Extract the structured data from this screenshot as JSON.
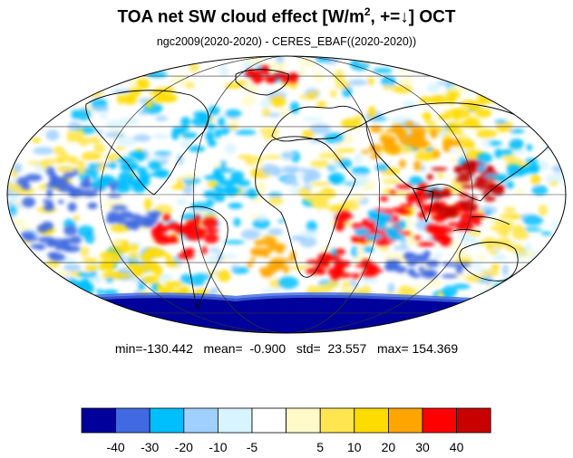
{
  "title": {
    "main": "TOA net SW cloud effect [W/m",
    "sup": "2",
    "tail": ", +=↓]  OCT"
  },
  "subtitle": "ngc2009(2020-2020) - CERES_EBAF((2020-2020))",
  "stats": {
    "text": "min=-130.442   mean=  -0.900   std=  23.557   max= 154.369",
    "min": -130.442,
    "mean": -0.9,
    "std": 23.557,
    "max": 154.369
  },
  "map": {
    "projection": "Mollweide",
    "month": "OCT",
    "grid": true,
    "colors": {
      "ocean_neutral": "#ffffff",
      "coastline": "#000000",
      "grid": "#444444"
    }
  },
  "colorbar": {
    "colors": [
      "#00009a",
      "#4169e1",
      "#00bfff",
      "#a0d0ff",
      "#d8f4ff",
      "#ffffff",
      "#fffac8",
      "#ffe650",
      "#ffdc00",
      "#ffa500",
      "#ff0000",
      "#c80000"
    ],
    "tick_labels": [
      "-40",
      "-30",
      "-20",
      "-10",
      "-5",
      "5",
      "10",
      "20",
      "30",
      "40"
    ]
  }
}
